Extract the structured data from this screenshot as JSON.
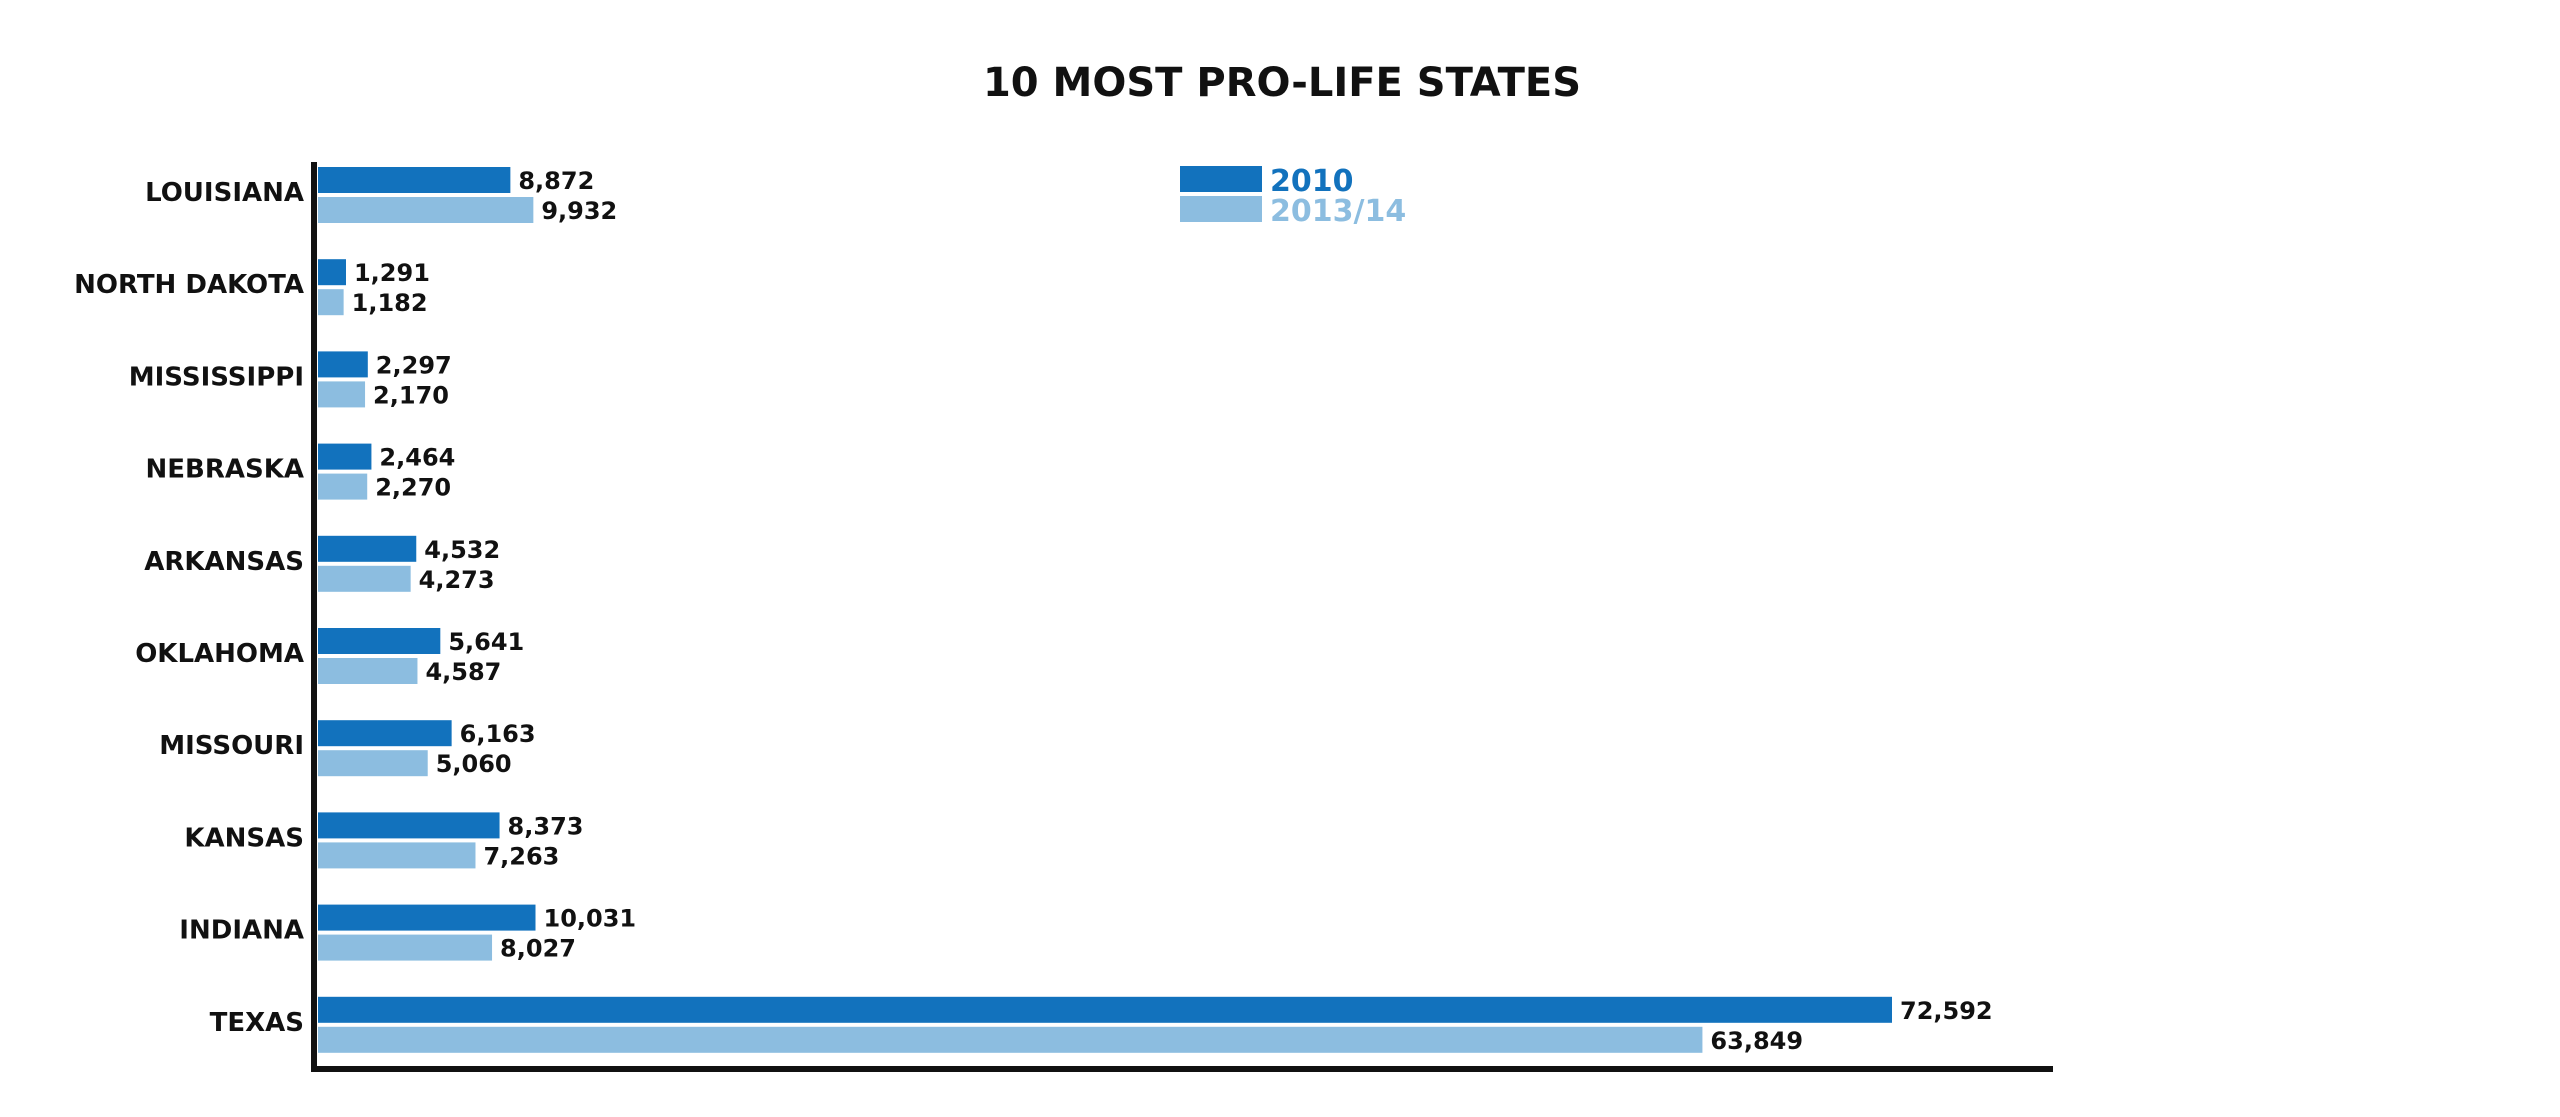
{
  "chart_data": {
    "type": "bar",
    "orientation": "horizontal",
    "title": "10 MOST PRO-LIFE STATES",
    "xlabel": "",
    "ylabel": "",
    "categories": [
      "LOUISIANA",
      "NORTH DAKOTA",
      "MISSISSIPPI",
      "NEBRASKA",
      "ARKANSAS",
      "OKLAHOMA",
      "MISSOURI",
      "KANSAS",
      "INDIANA",
      "TEXAS"
    ],
    "series": [
      {
        "name": "2010",
        "color": "#1272bd",
        "values": [
          8872,
          1291,
          2297,
          2464,
          4532,
          5641,
          6163,
          8373,
          10031,
          72592
        ],
        "labels": [
          "8,872",
          "1,291",
          "2,297",
          "2,464",
          "4,532",
          "5,641",
          "6,163",
          "8,373",
          "10,031",
          "72,592"
        ]
      },
      {
        "name": "2013/14",
        "color": "#8cbde0",
        "values": [
          9932,
          1182,
          2170,
          2270,
          4273,
          4587,
          5060,
          7263,
          8027,
          63849
        ],
        "labels": [
          "9,932",
          "1,182",
          "2,170",
          "2,270",
          "4,273",
          "4,587",
          "5,060",
          "7,263",
          "8,027",
          "63,849"
        ]
      }
    ],
    "xlim": [
      0,
      80000
    ],
    "grid": false,
    "legend": "top-center",
    "axis_color": "#111111"
  }
}
